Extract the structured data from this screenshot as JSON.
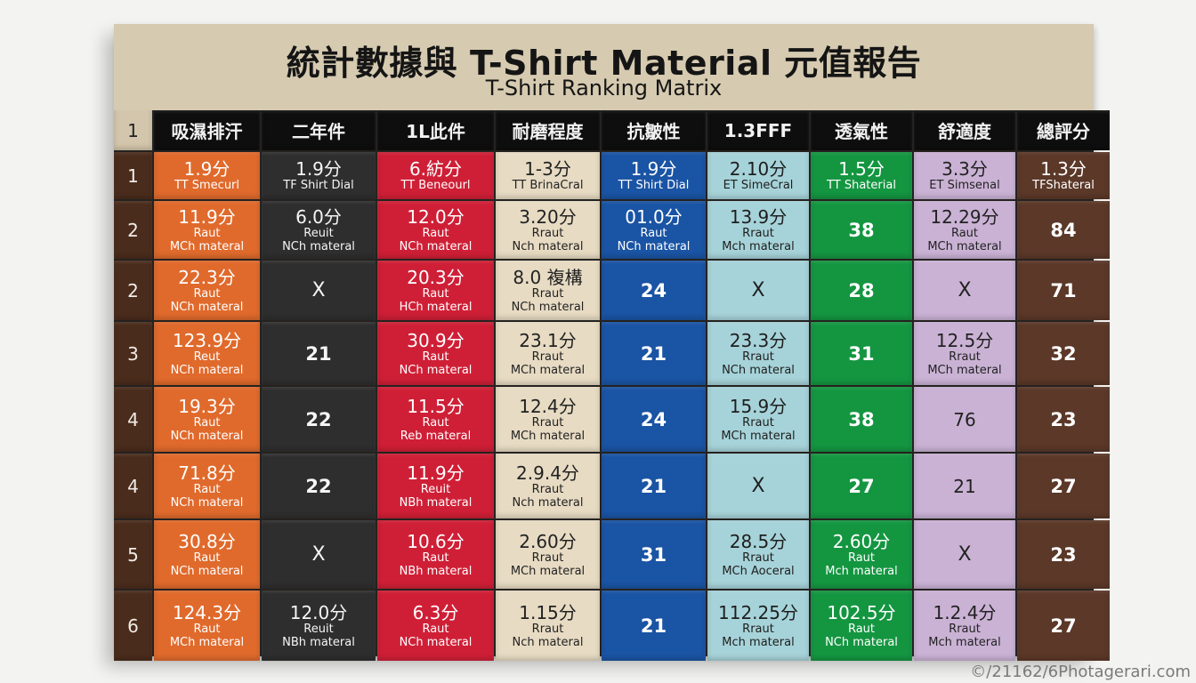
{
  "title": "統計數據與 T-Shirt Material 元值報告",
  "subtitle": "T-Shirt Ranking Matrix",
  "header": [
    "1",
    "吸濕排汗",
    "二年件",
    "1L此件",
    "耐磨程度",
    "抗皺性",
    "1.3FFF",
    "透氣性",
    "舒適度",
    "總評分"
  ],
  "column_colors": {
    "orange": "#e06a2c",
    "black": "#2e2e2e",
    "red": "#cf1f36",
    "beige": "#e7dbc3",
    "blue": "#1a54a4",
    "light_blue": "#a6d3d9",
    "green": "#149641",
    "lavender": "#cab2d5",
    "brown": "#5b3828"
  },
  "rows": [
    {
      "label": "1",
      "cells": [
        {
          "v": "1.9分",
          "s": "TT Smecurl"
        },
        {
          "v": "1.9分",
          "s": "TF Shirt Dial"
        },
        {
          "v": "6.紡分",
          "s": "TT Beneourl"
        },
        {
          "v": "1-3分",
          "s": "TT BrinaCral"
        },
        {
          "v": "1.9分",
          "s": "TT Shirt Dial"
        },
        {
          "v": "2.10分",
          "s": "ET SimeCral"
        },
        {
          "v": "1.5分",
          "s": "TT Shaterial"
        },
        {
          "v": "3.3分",
          "s": "ET Simsenal"
        },
        {
          "v": "1.3分",
          "s": "TFShateral"
        }
      ]
    },
    {
      "label": "2",
      "cells": [
        {
          "v": "11.9分",
          "s": "Raut",
          "s2": "MCh materal"
        },
        {
          "v": "6.0分",
          "s": "Reuit",
          "s2": "NCh materal"
        },
        {
          "v": "12.0分",
          "s": "Raut",
          "s2": "NCh materal"
        },
        {
          "v": "3.20分",
          "s": "Rraut",
          "s2": "Nch materal"
        },
        {
          "v": "01.0分",
          "s": "Raut",
          "s2": "NCh materal"
        },
        {
          "v": "13.9分",
          "s": "Rraut",
          "s2": "Mch materal"
        },
        {
          "n": "38"
        },
        {
          "v": "12.29分",
          "s": "Raut",
          "s2": "MCh materal"
        },
        {
          "n": "84"
        }
      ]
    },
    {
      "label": "2",
      "cells": [
        {
          "v": "22.3分",
          "s": "Raut",
          "s2": "NCh materal"
        },
        {
          "x": "X"
        },
        {
          "v": "20.3分",
          "s": "Raut",
          "s2": "HCh materal"
        },
        {
          "v": "8.0 複構",
          "s": "Rraut",
          "s2": "NCh materal"
        },
        {
          "n": "24"
        },
        {
          "x": "X"
        },
        {
          "n": "28"
        },
        {
          "x": "X"
        },
        {
          "n": "71"
        }
      ]
    },
    {
      "label": "3",
      "cells": [
        {
          "v": "123.9分",
          "s": "Reut",
          "s2": "NCh materal"
        },
        {
          "n": "21"
        },
        {
          "v": "30.9分",
          "s": "Raut",
          "s2": "NCh materal"
        },
        {
          "v": "23.1分",
          "s": "Rraut",
          "s2": "MCh materal"
        },
        {
          "n": "21"
        },
        {
          "v": "23.3分",
          "s": "Rraut",
          "s2": "NCh materal"
        },
        {
          "n": "31"
        },
        {
          "v": "12.5分",
          "s": "Rraut",
          "s2": "MCh materal"
        },
        {
          "n": "32"
        }
      ]
    },
    {
      "label": "4",
      "cells": [
        {
          "v": "19.3分",
          "s": "Raut",
          "s2": "NCh materal"
        },
        {
          "n": "22"
        },
        {
          "v": "11.5分",
          "s": "Raut",
          "s2": "Reb materal"
        },
        {
          "v": "12.4分",
          "s": "Rraut",
          "s2": "MCh materal"
        },
        {
          "n": "24"
        },
        {
          "v": "15.9分",
          "s": "Rraut",
          "s2": "MCh materal"
        },
        {
          "n": "38"
        },
        {
          "p": "76"
        },
        {
          "n": "23"
        }
      ]
    },
    {
      "label": "4",
      "cells": [
        {
          "v": "71.8分",
          "s": "Raut",
          "s2": "NCh materal"
        },
        {
          "n": "22"
        },
        {
          "v": "11.9分",
          "s": "Reuit",
          "s2": "NBh materal"
        },
        {
          "v": "2.9.4分",
          "s": "Rraut",
          "s2": "Nch materal"
        },
        {
          "n": "21"
        },
        {
          "x": "X"
        },
        {
          "n": "27"
        },
        {
          "p": "21"
        },
        {
          "n": "27"
        }
      ]
    },
    {
      "label": "5",
      "cells": [
        {
          "v": "30.8分",
          "s": "Raut",
          "s2": "NCh materal"
        },
        {
          "x": "X"
        },
        {
          "v": "10.6分",
          "s": "Raut",
          "s2": "NBh materal"
        },
        {
          "v": "2.60分",
          "s": "Rraut",
          "s2": "MCh materal"
        },
        {
          "n": "31"
        },
        {
          "v": "28.5分",
          "s": "Rraut",
          "s2": "MCh Aoceral"
        },
        {
          "v": "2.60分",
          "s": "Raut",
          "s2": "Mch materal"
        },
        {
          "x": "X"
        },
        {
          "n": "23"
        }
      ]
    },
    {
      "label": "6",
      "cells": [
        {
          "v": "124.3分",
          "s": "Raut",
          "s2": "MCh materal"
        },
        {
          "v": "12.0分",
          "s": "Reuit",
          "s2": "NBh materal"
        },
        {
          "v": "6.3分",
          "s": "Raut",
          "s2": "NCh materal"
        },
        {
          "v": "1.15分",
          "s": "Rraut",
          "s2": "Nch materal"
        },
        {
          "n": "21"
        },
        {
          "v": "112.25分",
          "s": "Rraut",
          "s2": "Mch materal"
        },
        {
          "v": "102.5分",
          "s": "Raut",
          "s2": "NCh materal"
        },
        {
          "v": "1.2.4分",
          "s": "Rraut",
          "s2": "Mch materal"
        },
        {
          "n": "27"
        }
      ]
    }
  ],
  "watermark": "©/21162/6Photagerari.com"
}
